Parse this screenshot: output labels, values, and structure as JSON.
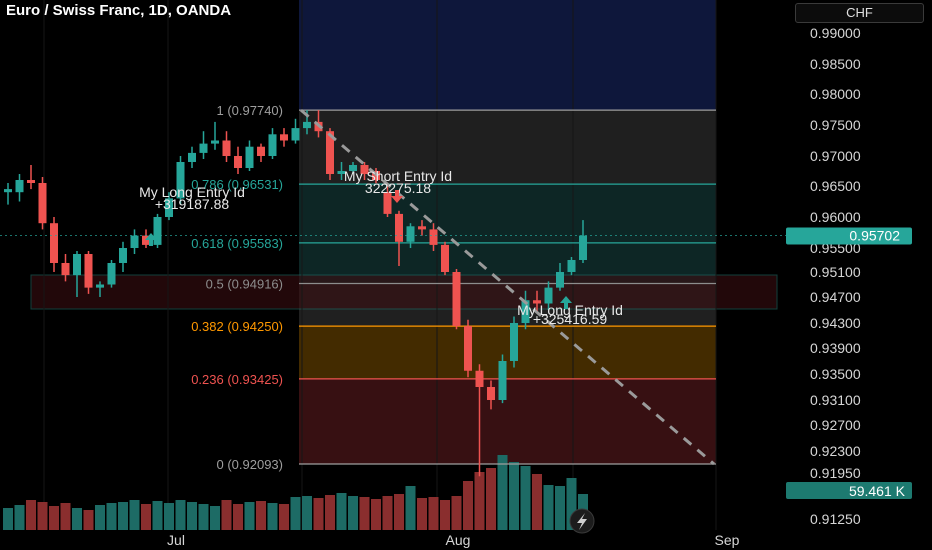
{
  "header": {
    "title": "Euro / Swiss Franc, 1D, OANDA",
    "currency": "CHF"
  },
  "colors": {
    "up": "#26a69a",
    "down": "#ef5350",
    "fib_1_line": "#9e9e9e",
    "fib_786": "#26a69a",
    "fib_618": "#26a69a",
    "fib_5": "#8d8d8d",
    "fib_382": "#ff9800",
    "fib_236": "#ef5350",
    "fib_0": "#9e9e9e",
    "price_badge": "#26a69a"
  },
  "chart_data": {
    "type": "candlestick",
    "symbol": "Euro / Swiss Franc, 1D, OANDA",
    "y_axis": {
      "ticks": [
        "0.99000",
        "0.98500",
        "0.98000",
        "0.97500",
        "0.97000",
        "0.96500",
        "0.96000",
        "0.95500",
        "0.95100",
        "0.94700",
        "0.94300",
        "0.93900",
        "0.93500",
        "0.93100",
        "0.92700",
        "0.92300",
        "0.91950",
        "0.91250"
      ],
      "tick_values": [
        0.99,
        0.985,
        0.98,
        0.975,
        0.97,
        0.965,
        0.96,
        0.955,
        0.951,
        0.947,
        0.943,
        0.939,
        0.935,
        0.931,
        0.927,
        0.923,
        0.9195,
        0.9125
      ]
    },
    "x_axis": {
      "ticks": [
        "Jul",
        "Aug",
        "Sep"
      ]
    },
    "current_price": {
      "label": "0.95702",
      "value": 0.95702
    },
    "volume_label": "59.461 K",
    "candles": [
      {
        "o": 0.964,
        "h": 0.9655,
        "l": 0.962,
        "c": 0.9645
      },
      {
        "o": 0.964,
        "h": 0.967,
        "l": 0.9625,
        "c": 0.966
      },
      {
        "o": 0.966,
        "h": 0.9685,
        "l": 0.9645,
        "c": 0.9655
      },
      {
        "o": 0.9655,
        "h": 0.9665,
        "l": 0.958,
        "c": 0.959
      },
      {
        "o": 0.959,
        "h": 0.96,
        "l": 0.951,
        "c": 0.9525
      },
      {
        "o": 0.9525,
        "h": 0.954,
        "l": 0.9495,
        "c": 0.9505
      },
      {
        "o": 0.9505,
        "h": 0.9545,
        "l": 0.947,
        "c": 0.954
      },
      {
        "o": 0.954,
        "h": 0.9545,
        "l": 0.9475,
        "c": 0.9485
      },
      {
        "o": 0.9485,
        "h": 0.9495,
        "l": 0.947,
        "c": 0.949
      },
      {
        "o": 0.949,
        "h": 0.953,
        "l": 0.9485,
        "c": 0.9525
      },
      {
        "o": 0.9525,
        "h": 0.956,
        "l": 0.951,
        "c": 0.955
      },
      {
        "o": 0.955,
        "h": 0.958,
        "l": 0.954,
        "c": 0.957
      },
      {
        "o": 0.957,
        "h": 0.958,
        "l": 0.955,
        "c": 0.9555
      },
      {
        "o": 0.9555,
        "h": 0.9605,
        "l": 0.955,
        "c": 0.96
      },
      {
        "o": 0.96,
        "h": 0.964,
        "l": 0.9595,
        "c": 0.963
      },
      {
        "o": 0.963,
        "h": 0.97,
        "l": 0.962,
        "c": 0.969
      },
      {
        "o": 0.969,
        "h": 0.9715,
        "l": 0.968,
        "c": 0.9705
      },
      {
        "o": 0.9705,
        "h": 0.974,
        "l": 0.9695,
        "c": 0.972
      },
      {
        "o": 0.972,
        "h": 0.9755,
        "l": 0.971,
        "c": 0.9725
      },
      {
        "o": 0.9725,
        "h": 0.974,
        "l": 0.969,
        "c": 0.97
      },
      {
        "o": 0.97,
        "h": 0.9715,
        "l": 0.967,
        "c": 0.968
      },
      {
        "o": 0.968,
        "h": 0.9725,
        "l": 0.9675,
        "c": 0.9715
      },
      {
        "o": 0.9715,
        "h": 0.972,
        "l": 0.969,
        "c": 0.97
      },
      {
        "o": 0.97,
        "h": 0.9745,
        "l": 0.9695,
        "c": 0.9735
      },
      {
        "o": 0.9735,
        "h": 0.9745,
        "l": 0.9715,
        "c": 0.9725
      },
      {
        "o": 0.9725,
        "h": 0.976,
        "l": 0.972,
        "c": 0.9745
      },
      {
        "o": 0.9745,
        "h": 0.9774,
        "l": 0.9735,
        "c": 0.9755
      },
      {
        "o": 0.9755,
        "h": 0.9774,
        "l": 0.973,
        "c": 0.974
      },
      {
        "o": 0.974,
        "h": 0.9745,
        "l": 0.966,
        "c": 0.967
      },
      {
        "o": 0.967,
        "h": 0.969,
        "l": 0.966,
        "c": 0.9675
      },
      {
        "o": 0.9675,
        "h": 0.969,
        "l": 0.967,
        "c": 0.9685
      },
      {
        "o": 0.9685,
        "h": 0.969,
        "l": 0.966,
        "c": 0.967
      },
      {
        "o": 0.9675,
        "h": 0.968,
        "l": 0.9655,
        "c": 0.966
      },
      {
        "o": 0.964,
        "h": 0.965,
        "l": 0.96,
        "c": 0.9605
      },
      {
        "o": 0.9605,
        "h": 0.961,
        "l": 0.952,
        "c": 0.956
      },
      {
        "o": 0.956,
        "h": 0.959,
        "l": 0.955,
        "c": 0.9585
      },
      {
        "o": 0.9585,
        "h": 0.9595,
        "l": 0.957,
        "c": 0.958
      },
      {
        "o": 0.958,
        "h": 0.959,
        "l": 0.9545,
        "c": 0.9555
      },
      {
        "o": 0.9555,
        "h": 0.956,
        "l": 0.9505,
        "c": 0.951
      },
      {
        "o": 0.951,
        "h": 0.9515,
        "l": 0.942,
        "c": 0.9425
      },
      {
        "o": 0.9425,
        "h": 0.9435,
        "l": 0.9345,
        "c": 0.9355
      },
      {
        "o": 0.9355,
        "h": 0.9365,
        "l": 0.919,
        "c": 0.933
      },
      {
        "o": 0.933,
        "h": 0.934,
        "l": 0.9295,
        "c": 0.931
      },
      {
        "o": 0.931,
        "h": 0.938,
        "l": 0.9305,
        "c": 0.937
      },
      {
        "o": 0.937,
        "h": 0.944,
        "l": 0.936,
        "c": 0.943
      },
      {
        "o": 0.943,
        "h": 0.948,
        "l": 0.942,
        "c": 0.9465
      },
      {
        "o": 0.9465,
        "h": 0.948,
        "l": 0.9445,
        "c": 0.946
      },
      {
        "o": 0.946,
        "h": 0.9495,
        "l": 0.945,
        "c": 0.9485
      },
      {
        "o": 0.9485,
        "h": 0.9525,
        "l": 0.948,
        "c": 0.951
      },
      {
        "o": 0.951,
        "h": 0.9535,
        "l": 0.9505,
        "c": 0.953
      },
      {
        "o": 0.953,
        "h": 0.9595,
        "l": 0.9525,
        "c": 0.957
      }
    ],
    "volume": [
      22,
      25,
      30,
      28,
      24,
      27,
      22,
      20,
      25,
      27,
      28,
      30,
      26,
      29,
      27,
      30,
      28,
      26,
      24,
      30,
      26,
      28,
      29,
      27,
      26,
      33,
      34,
      32,
      35,
      37,
      34,
      33,
      31,
      34,
      36,
      44,
      32,
      33,
      30,
      34,
      49,
      58,
      62,
      75,
      68,
      64,
      56,
      45,
      44,
      52,
      36
    ],
    "fibonacci": [
      {
        "level": "1",
        "value": 0.9774,
        "label": "1 (0.97740)"
      },
      {
        "level": "0.786",
        "value": 0.96531,
        "label": "0.786 (0.96531)"
      },
      {
        "level": "0.618",
        "value": 0.95583,
        "label": "0.618 (0.95583)"
      },
      {
        "level": "0.5",
        "value": 0.94916,
        "label": "0.5 (0.94916)"
      },
      {
        "level": "0.382",
        "value": 0.9425,
        "label": "0.382 (0.94250)"
      },
      {
        "level": "0.236",
        "value": 0.93425,
        "label": "0.236 (0.93425)"
      },
      {
        "level": "0",
        "value": 0.92093,
        "label": "0 (0.92093)"
      }
    ],
    "trades": [
      {
        "name": "My Long Entry Id",
        "value": "+319187.88"
      },
      {
        "name": "My Short Entry Id",
        "value": "322275.18"
      },
      {
        "name": "My Long Entry Id",
        "value": "+325416.59"
      }
    ]
  }
}
